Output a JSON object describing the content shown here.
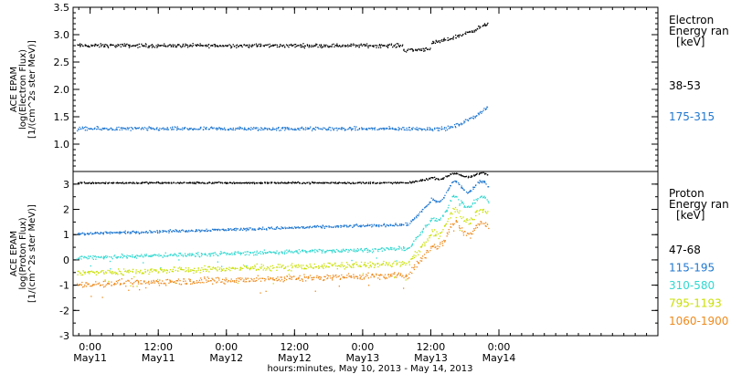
{
  "chart_data": {
    "type": "scatter",
    "time_range": "May 10, 2013 - May 14, 2013",
    "x_axis": {
      "title": "hours:minutes, May 10, 2013 - May 14, 2013",
      "range_hours": [
        -3,
        100
      ],
      "ticks": [
        {
          "hour": 0,
          "time": "0:00",
          "day": "May11"
        },
        {
          "hour": 12,
          "time": "12:00",
          "day": "May11"
        },
        {
          "hour": 24,
          "time": "0:00",
          "day": "May12"
        },
        {
          "hour": 36,
          "time": "12:00",
          "day": "May12"
        },
        {
          "hour": 48,
          "time": "0:00",
          "day": "May13"
        },
        {
          "hour": 60,
          "time": "12:00",
          "day": "May13"
        },
        {
          "hour": 72,
          "time": "0:00",
          "day": "May14"
        }
      ],
      "data_end_hour": 70
    },
    "panels": [
      {
        "id": "electron",
        "ylabel_lines": [
          "ACE EPAM",
          "log(Electron Flux)",
          "[1/(cm^2s ster MeV)]"
        ],
        "ylim": [
          0.5,
          3.5
        ],
        "yticks": [
          "1.0",
          "1.5",
          "2.0",
          "2.5",
          "3.0",
          "3.5"
        ],
        "legend_title": [
          "Electron",
          "Energy ran",
          "[keV]"
        ],
        "series": [
          {
            "name": "38-53",
            "color": "#000000",
            "base": 2.8,
            "noise": 0.05,
            "rise_to": 3.2,
            "rise_start_hour": 57
          },
          {
            "name": "175-315",
            "color": "#1f77d0",
            "base": 1.28,
            "noise": 0.05,
            "rise_to": 1.68,
            "rise_start_hour": 62
          }
        ]
      },
      {
        "id": "proton",
        "ylabel_lines": [
          "ACE EPAM",
          "log(Proton Flux)",
          "[1/(cm^2s ster MeV)]"
        ],
        "ylim": [
          -3,
          3.5
        ],
        "yticks": [
          "-3",
          "-2",
          "-1",
          "0",
          "1",
          "2",
          "3"
        ],
        "legend_title": [
          "Proton",
          "Energy ran",
          "[keV]"
        ],
        "series": [
          {
            "name": "47-68",
            "color": "#000000",
            "base": 3.05,
            "noise": 0.05,
            "late_level": 3.35
          },
          {
            "name": "115-195",
            "color": "#1f77d0",
            "base": 1.05,
            "noise": 0.08,
            "late_level": 2.9
          },
          {
            "name": "310-580",
            "color": "#2fd8d0",
            "base": 0.1,
            "noise": 0.12,
            "late_level": 2.3
          },
          {
            "name": "795-1193",
            "color": "#c9e000",
            "base": -0.5,
            "noise": 0.18,
            "late_level": 1.75
          },
          {
            "name": "1060-1900",
            "color": "#ef8a1c",
            "base": -0.95,
            "noise": 0.2,
            "late_level": 1.25
          }
        ]
      }
    ]
  }
}
